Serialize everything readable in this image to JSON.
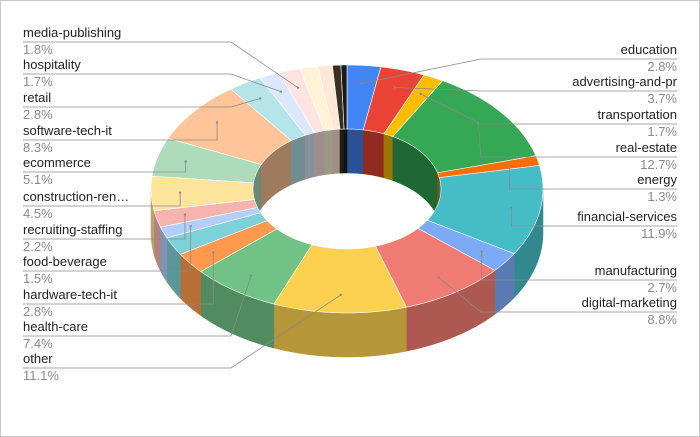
{
  "chart_data": {
    "type": "pie",
    "style": "3d-donut",
    "title": "",
    "slices": [
      {
        "label": "education",
        "pct_label": "2.8%",
        "value": 2.8,
        "color": "#4285f4"
      },
      {
        "label": "advertising-and-pr",
        "pct_label": "3.7%",
        "value": 3.7,
        "color": "#ea4335"
      },
      {
        "label": "transportation",
        "pct_label": "1.7%",
        "value": 1.7,
        "color": "#fbbc04"
      },
      {
        "label": "real-estate",
        "pct_label": "12.7%",
        "value": 12.7,
        "color": "#34a853"
      },
      {
        "label": "energy",
        "pct_label": "1.3%",
        "value": 1.3,
        "color": "#ff6d01"
      },
      {
        "label": "financial-services",
        "pct_label": "11.9%",
        "value": 11.9,
        "color": "#46bdc6"
      },
      {
        "label": "manufacturing",
        "pct_label": "2.7%",
        "value": 2.7,
        "color": "#7baaf7"
      },
      {
        "label": "digital-marketing",
        "pct_label": "8.8%",
        "value": 8.8,
        "color": "#f07b72"
      },
      {
        "label": "other",
        "pct_label": "11.1%",
        "value": 11.1,
        "color": "#fcd04f"
      },
      {
        "label": "health-care",
        "pct_label": "7.4%",
        "value": 7.4,
        "color": "#71c287"
      },
      {
        "label": "hardware-tech-it",
        "pct_label": "2.8%",
        "value": 2.8,
        "color": "#ff994d"
      },
      {
        "label": "",
        "pct_label": "",
        "value": 2.4,
        "color": "#7ed1d7"
      },
      {
        "label": "food-beverage",
        "pct_label": "1.5%",
        "value": 1.5,
        "color": "#b3cefb"
      },
      {
        "label": "recruiting-staffing",
        "pct_label": "2.2%",
        "value": 2.2,
        "color": "#f7b4ae"
      },
      {
        "label": "construction-ren…",
        "pct_label": "4.5%",
        "value": 4.5,
        "color": "#fde49b"
      },
      {
        "label": "ecommerce",
        "pct_label": "5.1%",
        "value": 5.1,
        "color": "#aedcba"
      },
      {
        "label": "software-tech-it",
        "pct_label": "8.3%",
        "value": 8.3,
        "color": "#ffc599"
      },
      {
        "label": "retail",
        "pct_label": "2.8%",
        "value": 2.8,
        "color": "#b5e5e9"
      },
      {
        "label": "hospitality",
        "pct_label": "1.7%",
        "value": 1.7,
        "color": "#dbe7fd"
      },
      {
        "label": "media-publishing",
        "pct_label": "1.8%",
        "value": 1.8,
        "color": "#fde4e1"
      },
      {
        "label": "",
        "pct_label": "",
        "value": 1.5,
        "color": "#fef3d6"
      },
      {
        "label": "",
        "pct_label": "",
        "value": 1.2,
        "color": "#ffe8d6"
      },
      {
        "label": "",
        "pct_label": "",
        "value": 0.7,
        "color": "#3a2f20"
      },
      {
        "label": "",
        "pct_label": "",
        "value": 0.5,
        "color": "#1a1a1a"
      }
    ],
    "legend": "none",
    "grid": false
  }
}
